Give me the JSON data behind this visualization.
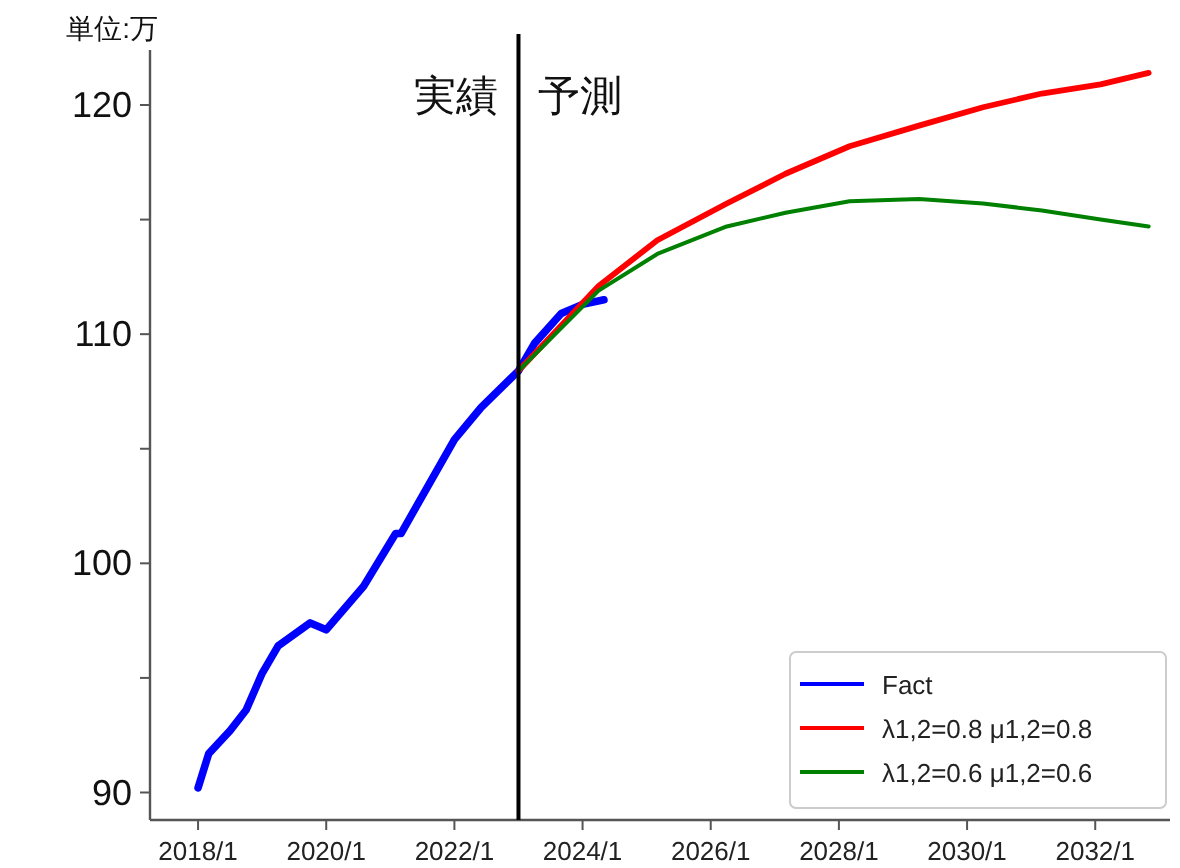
{
  "chart_data": {
    "type": "line",
    "ylabel": "単位:万",
    "annotations": [
      "実績",
      "予測"
    ],
    "series": [
      {
        "name": "Fact",
        "color": "#0000ff",
        "x": [
          "2018-01",
          "2018-03",
          "2018-07",
          "2018-10",
          "2019-01",
          "2019-04",
          "2019-10",
          "2020-01",
          "2020-08",
          "2021-02",
          "2021-03",
          "2022-01",
          "2022-06",
          "2023-01",
          "2023-04",
          "2023-09",
          "2024-01",
          "2024-05"
        ],
        "values": [
          90.2,
          91.7,
          92.7,
          93.6,
          95.2,
          96.4,
          97.4,
          97.1,
          99.0,
          101.3,
          101.3,
          105.4,
          106.8,
          108.4,
          109.6,
          110.9,
          111.3,
          111.5
        ]
      },
      {
        "name": "λ1,2=0.8 μ1,2=0.8",
        "color": "#ff0000",
        "x": [
          "2023-01",
          "2024-04",
          "2025-03",
          "2026-04",
          "2027-03",
          "2028-03",
          "2029-04",
          "2030-04",
          "2031-03",
          "2032-02",
          "2032-11"
        ],
        "values": [
          108.4,
          112.1,
          114.1,
          115.7,
          117.0,
          118.2,
          119.1,
          119.9,
          120.5,
          120.9,
          121.4
        ]
      },
      {
        "name": "λ1,2=0.6 μ1,2=0.6",
        "color": "#008000",
        "x": [
          "2023-01",
          "2024-04",
          "2025-03",
          "2026-04",
          "2027-03",
          "2028-03",
          "2029-04",
          "2030-04",
          "2031-03",
          "2032-02",
          "2032-11"
        ],
        "values": [
          108.4,
          111.9,
          113.5,
          114.7,
          115.3,
          115.8,
          115.9,
          115.7,
          115.4,
          115.0,
          114.7
        ]
      }
    ],
    "ref_lines": [
      {
        "axis": "x",
        "value": "2023-01",
        "color": "#000000"
      }
    ],
    "xlim": [
      "2017-04",
      "2033-03"
    ],
    "xticks": [
      {
        "value": "2018-01",
        "label": "2018/1"
      },
      {
        "value": "2020-01",
        "label": "2020/1"
      },
      {
        "value": "2022-01",
        "label": "2022/1"
      },
      {
        "value": "2024-01",
        "label": "2024/1"
      },
      {
        "value": "2026-01",
        "label": "2026/1"
      },
      {
        "value": "2028-01",
        "label": "2028/1"
      },
      {
        "value": "2030-01",
        "label": "2030/1"
      },
      {
        "value": "2032-01",
        "label": "2032/1"
      }
    ],
    "ylim": [
      88.8,
      122.4
    ],
    "yticks": [
      90,
      {
        "value": 95,
        "label": null
      },
      100,
      {
        "value": 105,
        "label": null
      },
      110,
      {
        "value": 115,
        "label": null
      },
      120
    ],
    "legend": "bottom right"
  }
}
